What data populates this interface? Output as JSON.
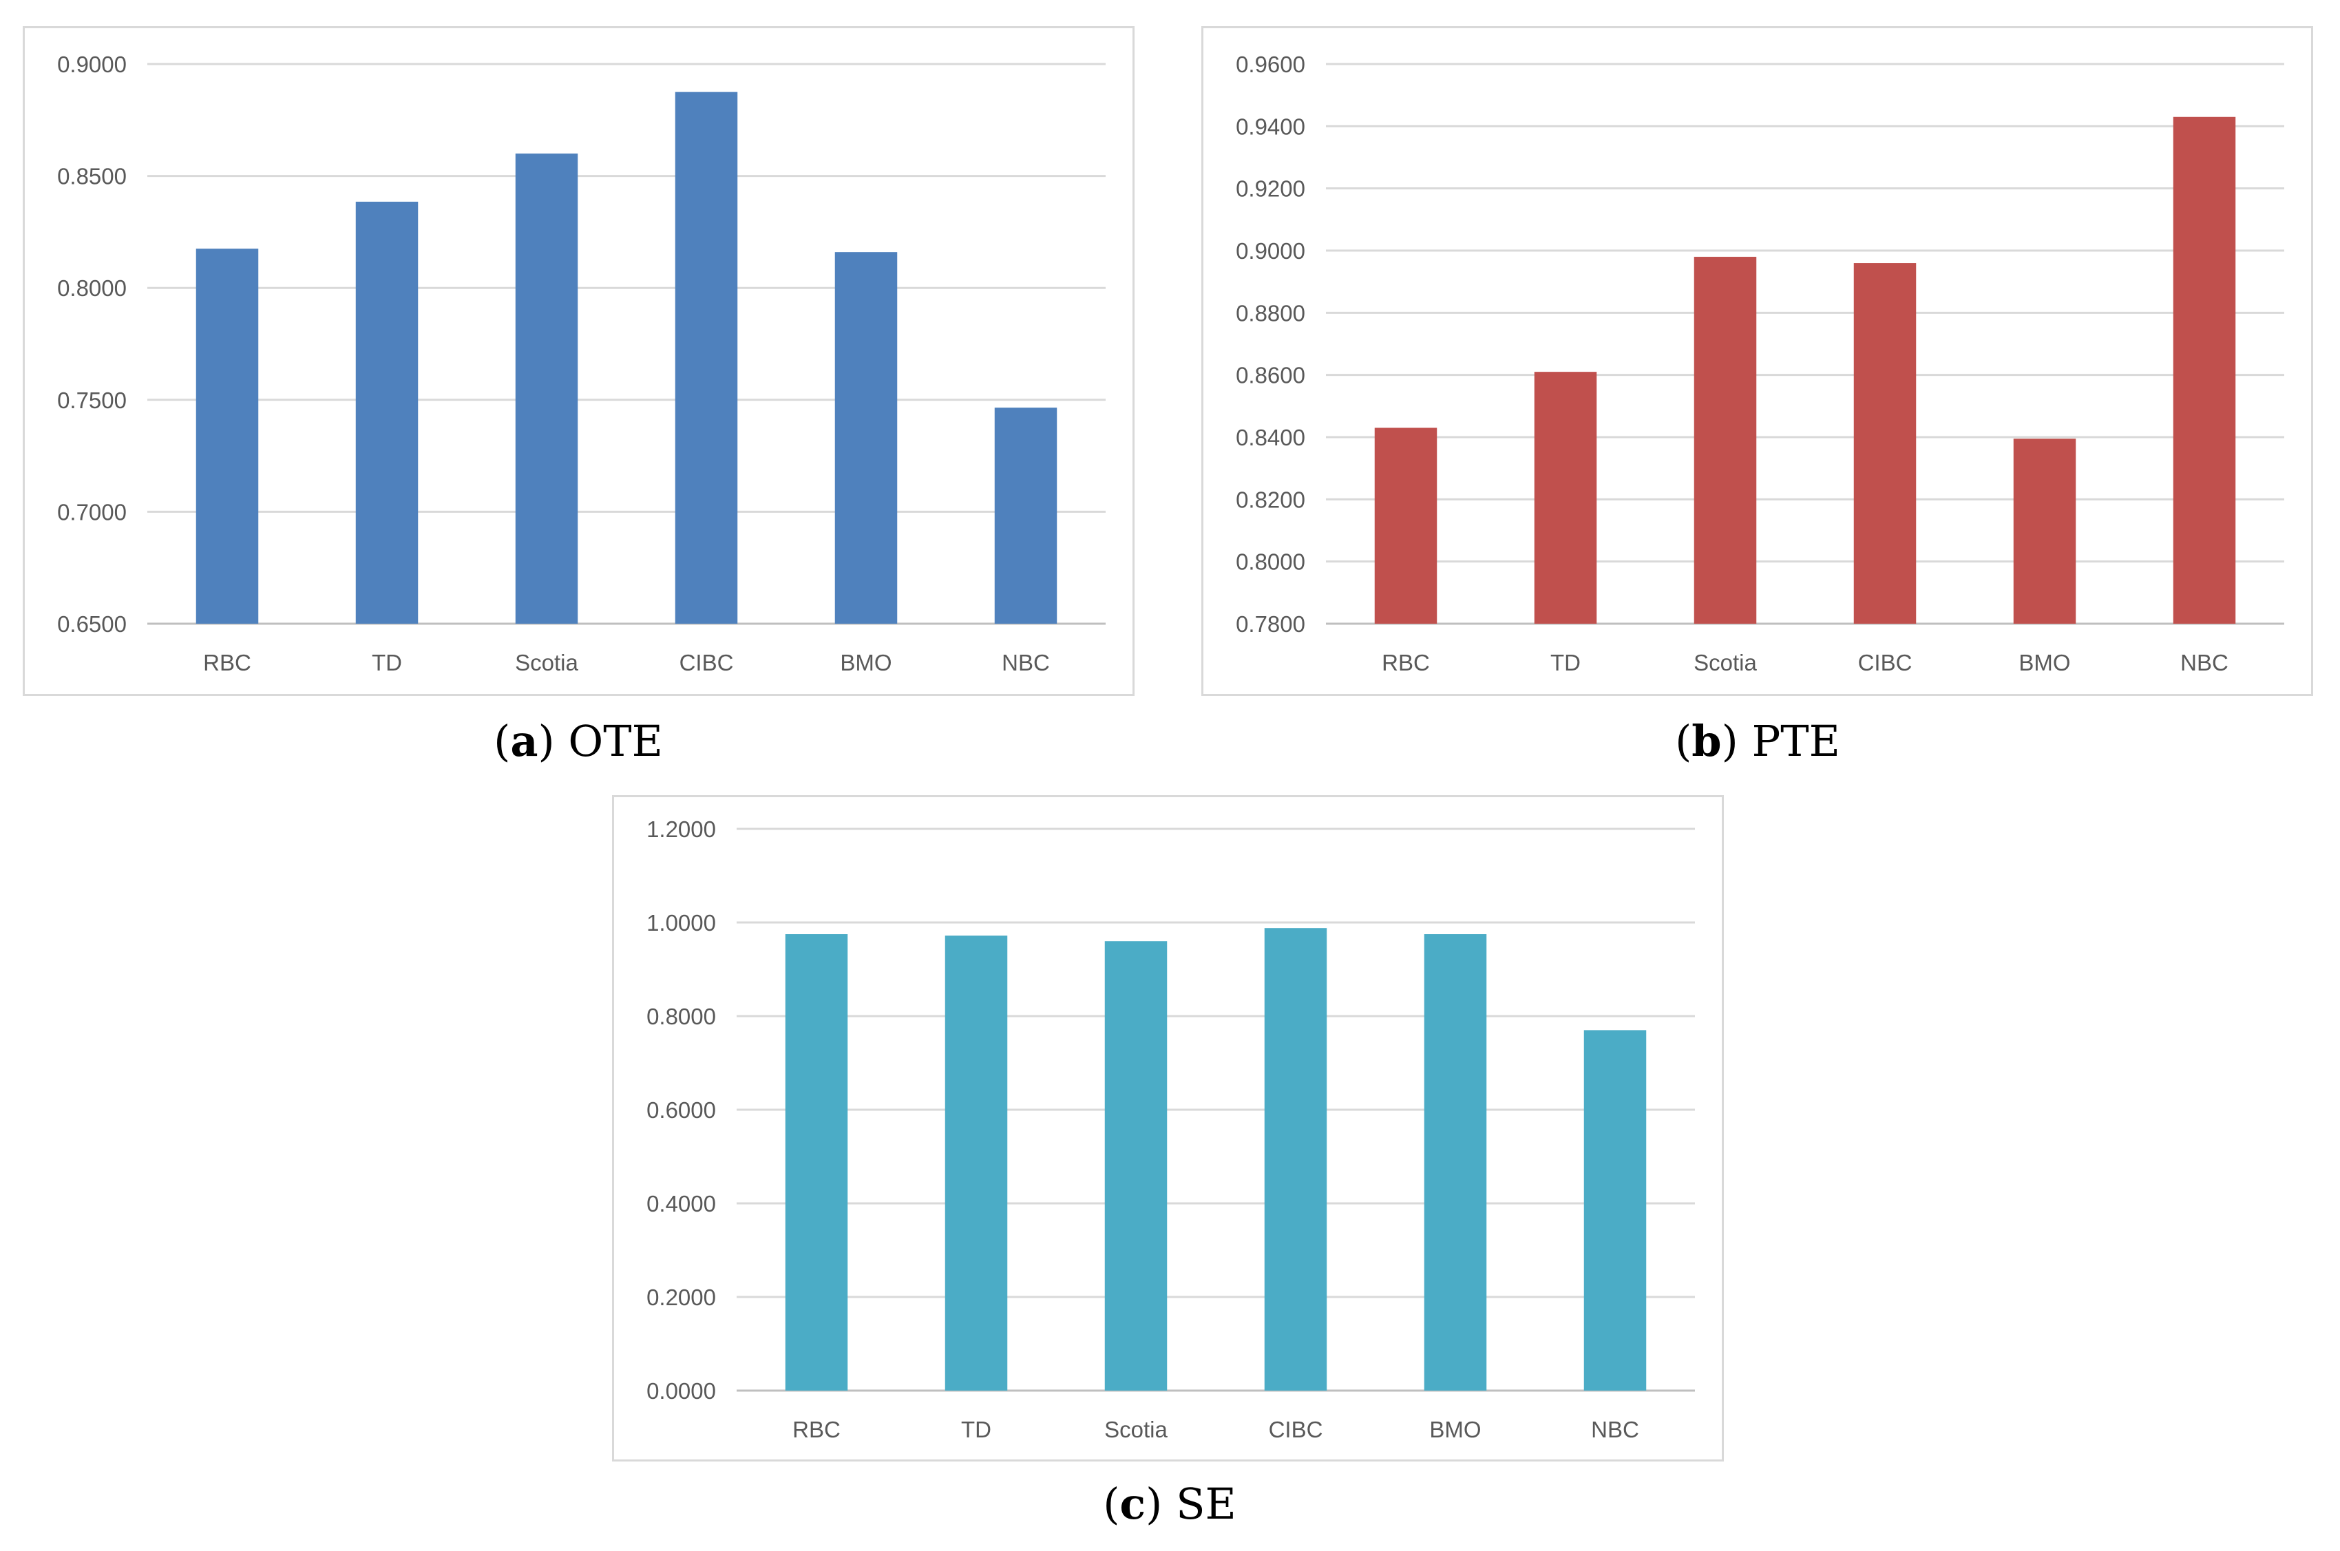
{
  "charts": [
    {
      "caption_letter": "a",
      "caption_text": "OTE",
      "color": "#4f81bd"
    },
    {
      "caption_letter": "b",
      "caption_text": "PTE",
      "color": "#c0504d"
    },
    {
      "caption_letter": "c",
      "caption_text": "SE",
      "color": "#4bacc6"
    }
  ],
  "chart_data": [
    {
      "type": "bar",
      "title": "",
      "categories": [
        "RBC",
        "TD",
        "Scotia",
        "CIBC",
        "BMO",
        "NBC"
      ],
      "values": [
        0.8175,
        0.8385,
        0.86,
        0.8875,
        0.816,
        0.7465
      ],
      "ylim": [
        0.65,
        0.9
      ],
      "yticks": [
        "0.6500",
        "0.7000",
        "0.7500",
        "0.8000",
        "0.8500",
        "0.9000"
      ],
      "grid": true,
      "legend": "none"
    },
    {
      "type": "bar",
      "title": "",
      "categories": [
        "RBC",
        "TD",
        "Scotia",
        "CIBC",
        "BMO",
        "NBC"
      ],
      "values": [
        0.843,
        0.861,
        0.898,
        0.896,
        0.8395,
        0.943
      ],
      "ylim": [
        0.78,
        0.96
      ],
      "yticks": [
        "0.7800",
        "0.8000",
        "0.8200",
        "0.8400",
        "0.8600",
        "0.8800",
        "0.9000",
        "0.9200",
        "0.9400",
        "0.9600"
      ],
      "grid": true,
      "legend": "none"
    },
    {
      "type": "bar",
      "title": "",
      "categories": [
        "RBC",
        "TD",
        "Scotia",
        "CIBC",
        "BMO",
        "NBC"
      ],
      "values": [
        0.975,
        0.972,
        0.96,
        0.988,
        0.975,
        0.77
      ],
      "ylim": [
        0.0,
        1.2
      ],
      "yticks": [
        "0.0000",
        "0.2000",
        "0.4000",
        "0.6000",
        "0.8000",
        "1.0000",
        "1.2000"
      ],
      "grid": true,
      "legend": "none"
    }
  ]
}
